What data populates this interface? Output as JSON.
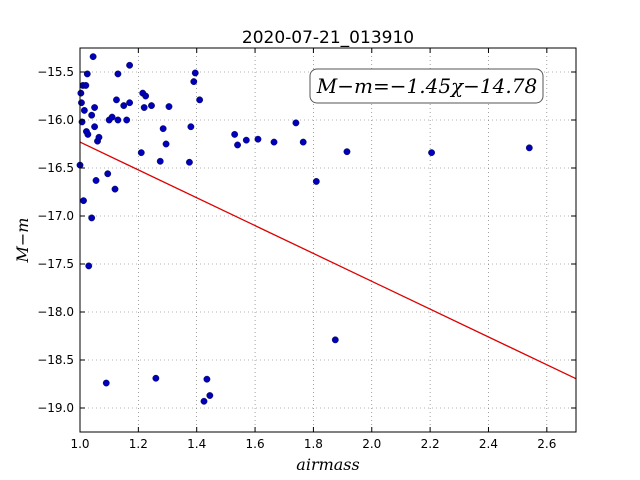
{
  "chart_data": {
    "type": "scatter",
    "title": "2020-07-21_013910",
    "xlabel": "airmass",
    "ylabel": "M−m",
    "xlim": [
      1.0,
      2.7
    ],
    "ylim": [
      -19.25,
      -15.25
    ],
    "y_inverted": true,
    "grid": true,
    "x_ticks": [
      1.0,
      1.2,
      1.4,
      1.6,
      1.8,
      2.0,
      2.2,
      2.4,
      2.6
    ],
    "x_tick_labels": [
      "1.0",
      "1.2",
      "1.4",
      "1.6",
      "1.8",
      "2.0",
      "2.2",
      "2.4",
      "2.6"
    ],
    "y_ticks": [
      -15.5,
      -16.0,
      -16.5,
      -17.0,
      -17.5,
      -18.0,
      -18.5,
      -19.0
    ],
    "y_tick_labels": [
      "−15.5",
      "−16.0",
      "−16.5",
      "−17.0",
      "−17.5",
      "−18.0",
      "−18.5",
      "−19.0"
    ],
    "annotation": "M−m=−1.45χ−14.78",
    "annotation_placement": "top-right",
    "fit": {
      "slope": -1.45,
      "intercept": -14.78,
      "x_range": [
        1.0,
        2.7
      ],
      "color": "#dd0000"
    },
    "series": [
      {
        "color": "#0000bb",
        "points": [
          [
            1.0,
            -16.47
          ],
          [
            1.003,
            -15.72
          ],
          [
            1.005,
            -15.82
          ],
          [
            1.007,
            -16.02
          ],
          [
            1.01,
            -15.64
          ],
          [
            1.012,
            -16.84
          ],
          [
            1.015,
            -15.9
          ],
          [
            1.02,
            -15.64
          ],
          [
            1.022,
            -16.12
          ],
          [
            1.025,
            -15.52
          ],
          [
            1.027,
            -16.15
          ],
          [
            1.03,
            -17.52
          ],
          [
            1.04,
            -15.95
          ],
          [
            1.04,
            -17.02
          ],
          [
            1.045,
            -15.34
          ],
          [
            1.05,
            -16.07
          ],
          [
            1.05,
            -15.87
          ],
          [
            1.055,
            -16.63
          ],
          [
            1.06,
            -16.22
          ],
          [
            1.065,
            -16.18
          ],
          [
            1.09,
            -18.74
          ],
          [
            1.095,
            -16.56
          ],
          [
            1.1,
            -16.0
          ],
          [
            1.11,
            -15.97
          ],
          [
            1.12,
            -16.72
          ],
          [
            1.125,
            -15.79
          ],
          [
            1.13,
            -15.52
          ],
          [
            1.13,
            -16.0
          ],
          [
            1.15,
            -15.85
          ],
          [
            1.16,
            -16.0
          ],
          [
            1.17,
            -15.82
          ],
          [
            1.17,
            -15.43
          ],
          [
            1.21,
            -16.34
          ],
          [
            1.215,
            -15.72
          ],
          [
            1.22,
            -15.87
          ],
          [
            1.225,
            -15.75
          ],
          [
            1.245,
            -15.85
          ],
          [
            1.26,
            -18.69
          ],
          [
            1.275,
            -16.43
          ],
          [
            1.285,
            -16.09
          ],
          [
            1.295,
            -16.25
          ],
          [
            1.305,
            -15.86
          ],
          [
            1.375,
            -16.44
          ],
          [
            1.38,
            -16.07
          ],
          [
            1.39,
            -15.6
          ],
          [
            1.395,
            -15.51
          ],
          [
            1.41,
            -15.79
          ],
          [
            1.425,
            -18.93
          ],
          [
            1.435,
            -18.7
          ],
          [
            1.445,
            -18.87
          ],
          [
            1.53,
            -16.15
          ],
          [
            1.54,
            -16.26
          ],
          [
            1.57,
            -16.21
          ],
          [
            1.61,
            -16.2
          ],
          [
            1.665,
            -16.23
          ],
          [
            1.74,
            -16.03
          ],
          [
            1.765,
            -16.23
          ],
          [
            1.81,
            -16.64
          ],
          [
            1.875,
            -18.29
          ],
          [
            1.915,
            -16.33
          ],
          [
            2.205,
            -16.34
          ],
          [
            2.54,
            -16.29
          ]
        ]
      }
    ]
  }
}
